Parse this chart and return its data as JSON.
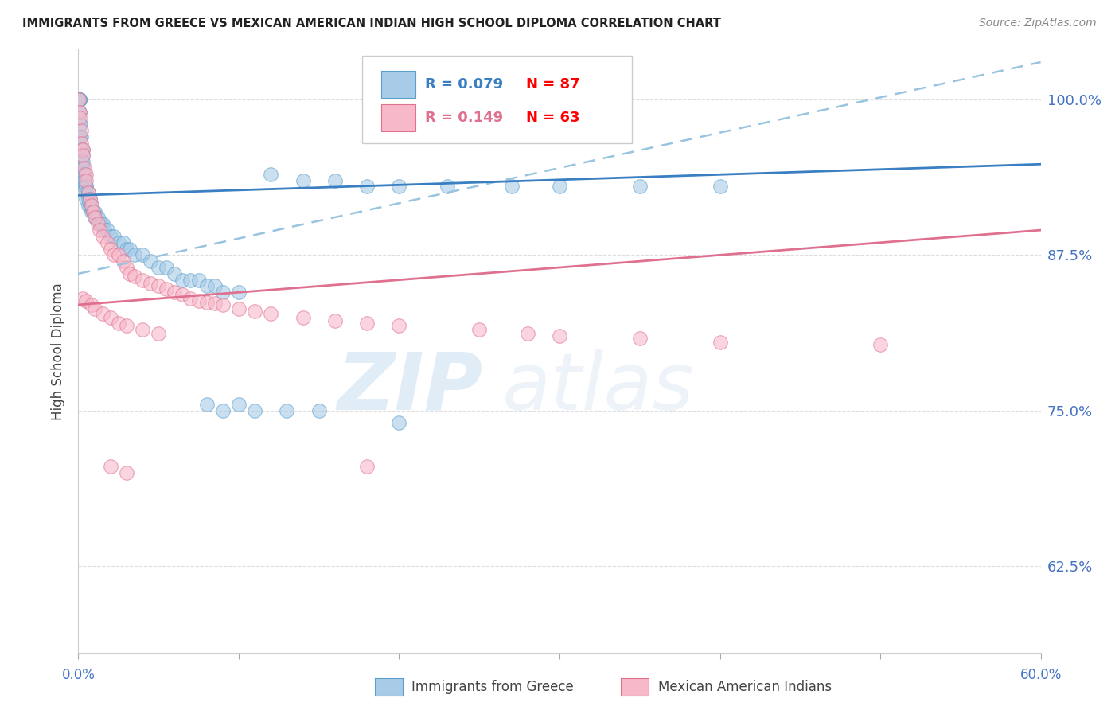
{
  "title": "IMMIGRANTS FROM GREECE VS MEXICAN AMERICAN INDIAN HIGH SCHOOL DIPLOMA CORRELATION CHART",
  "source": "Source: ZipAtlas.com",
  "ylabel": "High School Diploma",
  "yticks": [
    0.625,
    0.75,
    0.875,
    1.0
  ],
  "ytick_labels": [
    "62.5%",
    "75.0%",
    "87.5%",
    "100.0%"
  ],
  "xlim": [
    0.0,
    0.6
  ],
  "ylim": [
    0.555,
    1.04
  ],
  "legend_blue_r": "R = 0.079",
  "legend_blue_n": "N = 87",
  "legend_pink_r": "R = 0.149",
  "legend_pink_n": "N = 63",
  "blue_fill": "#a8cce8",
  "pink_fill": "#f7b8c8",
  "blue_edge": "#5a9ec9",
  "pink_edge": "#e07090",
  "blue_line_color": "#3a7fc1",
  "pink_line_color": "#e07090",
  "dashed_line_color": "#99c4e0",
  "label_blue": "Immigrants from Greece",
  "label_pink": "Mexican American Indians",
  "blue_scatter_x": [
    0.0005,
    0.0005,
    0.0005,
    0.001,
    0.001,
    0.001,
    0.001,
    0.001,
    0.001,
    0.001,
    0.001,
    0.001,
    0.0015,
    0.0015,
    0.002,
    0.002,
    0.002,
    0.002,
    0.002,
    0.002,
    0.0025,
    0.003,
    0.003,
    0.003,
    0.003,
    0.003,
    0.003,
    0.004,
    0.004,
    0.004,
    0.005,
    0.005,
    0.005,
    0.005,
    0.006,
    0.006,
    0.006,
    0.007,
    0.007,
    0.008,
    0.008,
    0.009,
    0.01,
    0.01,
    0.011,
    0.012,
    0.013,
    0.014,
    0.015,
    0.016,
    0.018,
    0.02,
    0.022,
    0.025,
    0.028,
    0.03,
    0.032,
    0.035,
    0.04,
    0.045,
    0.05,
    0.055,
    0.06,
    0.065,
    0.07,
    0.075,
    0.08,
    0.085,
    0.09,
    0.1,
    0.12,
    0.14,
    0.16,
    0.18,
    0.2,
    0.23,
    0.27,
    0.3,
    0.35,
    0.4,
    0.08,
    0.09,
    0.1,
    0.11,
    0.13,
    0.15,
    0.2
  ],
  "blue_scatter_y": [
    1.0,
    1.0,
    0.99,
    1.0,
    1.0,
    1.0,
    1.0,
    0.99,
    0.98,
    0.97,
    0.96,
    0.95,
    0.98,
    0.97,
    0.97,
    0.96,
    0.96,
    0.95,
    0.94,
    0.935,
    0.945,
    0.96,
    0.955,
    0.95,
    0.945,
    0.94,
    0.935,
    0.94,
    0.935,
    0.93,
    0.93,
    0.93,
    0.925,
    0.92,
    0.925,
    0.92,
    0.915,
    0.92,
    0.915,
    0.915,
    0.91,
    0.91,
    0.91,
    0.905,
    0.905,
    0.905,
    0.9,
    0.9,
    0.9,
    0.895,
    0.895,
    0.89,
    0.89,
    0.885,
    0.885,
    0.88,
    0.88,
    0.875,
    0.875,
    0.87,
    0.865,
    0.865,
    0.86,
    0.855,
    0.855,
    0.855,
    0.85,
    0.85,
    0.845,
    0.845,
    0.94,
    0.935,
    0.935,
    0.93,
    0.93,
    0.93,
    0.93,
    0.93,
    0.93,
    0.93,
    0.755,
    0.75,
    0.755,
    0.75,
    0.75,
    0.75,
    0.74
  ],
  "pink_scatter_x": [
    0.0005,
    0.001,
    0.001,
    0.002,
    0.002,
    0.003,
    0.003,
    0.004,
    0.005,
    0.005,
    0.006,
    0.007,
    0.008,
    0.009,
    0.01,
    0.012,
    0.013,
    0.015,
    0.018,
    0.02,
    0.022,
    0.025,
    0.028,
    0.03,
    0.032,
    0.035,
    0.04,
    0.045,
    0.05,
    0.055,
    0.06,
    0.065,
    0.07,
    0.075,
    0.08,
    0.085,
    0.09,
    0.1,
    0.11,
    0.12,
    0.14,
    0.16,
    0.18,
    0.2,
    0.25,
    0.28,
    0.3,
    0.35,
    0.4,
    0.5,
    0.003,
    0.005,
    0.008,
    0.01,
    0.015,
    0.02,
    0.025,
    0.03,
    0.04,
    0.05,
    0.02,
    0.03,
    0.18
  ],
  "pink_scatter_y": [
    1.0,
    0.99,
    0.985,
    0.975,
    0.965,
    0.96,
    0.955,
    0.945,
    0.94,
    0.935,
    0.925,
    0.92,
    0.915,
    0.91,
    0.905,
    0.9,
    0.895,
    0.89,
    0.885,
    0.88,
    0.875,
    0.875,
    0.87,
    0.865,
    0.86,
    0.858,
    0.855,
    0.852,
    0.85,
    0.848,
    0.845,
    0.843,
    0.84,
    0.838,
    0.837,
    0.836,
    0.835,
    0.832,
    0.83,
    0.828,
    0.825,
    0.822,
    0.82,
    0.818,
    0.815,
    0.812,
    0.81,
    0.808,
    0.805,
    0.803,
    0.84,
    0.838,
    0.835,
    0.832,
    0.828,
    0.825,
    0.82,
    0.818,
    0.815,
    0.812,
    0.705,
    0.7,
    0.705
  ],
  "blue_trend": [
    0.0,
    0.6,
    0.923,
    0.948
  ],
  "dashed_trend": [
    0.0,
    0.6,
    0.86,
    1.03
  ],
  "pink_trend": [
    0.0,
    0.6,
    0.835,
    0.895
  ],
  "watermark_zip": "ZIP",
  "watermark_atlas": "atlas",
  "axis_color": "#4472C4",
  "grid_color": "#dddddd",
  "xtick_positions": [
    0.0,
    0.1,
    0.2,
    0.3,
    0.4,
    0.5,
    0.6
  ]
}
